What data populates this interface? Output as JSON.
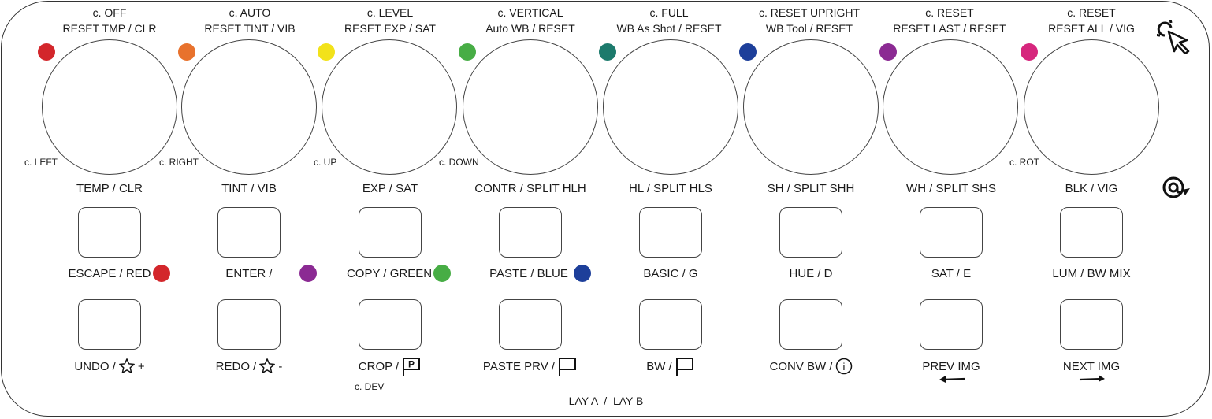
{
  "knobs": [
    {
      "line1": "c. OFF",
      "line2": "RESET TMP / CLR",
      "dot": "#d3262b",
      "corner": "c. LEFT"
    },
    {
      "line1": "c. AUTO",
      "line2": "RESET  TINT / VIB",
      "dot": "#e8722d",
      "corner": "c. RIGHT"
    },
    {
      "line1": "c. LEVEL",
      "line2": "RESET EXP / SAT",
      "dot": "#f2e21a",
      "corner": "c. UP"
    },
    {
      "line1": "c. VERTICAL",
      "line2": "Auto WB / RESET",
      "dot": "#47ad45",
      "corner": "c. DOWN"
    },
    {
      "line1": "c. FULL",
      "line2": "WB As Shot / RESET",
      "dot": "#1c7a6c",
      "corner": ""
    },
    {
      "line1": "c. RESET UPRIGHT",
      "line2": "WB Tool / RESET",
      "dot": "#1d3f9a",
      "corner": ""
    },
    {
      "line1": "c. RESET",
      "line2": "RESET LAST / RESET",
      "dot": "#8b2a93",
      "corner": ""
    },
    {
      "line1": "c. RESET",
      "line2": "RESET ALL / VIG",
      "dot": "#d6267d",
      "corner": "c. ROT"
    }
  ],
  "row1_labels": [
    "TEMP / CLR",
    "TINT / VIB",
    "EXP / SAT",
    "CONTR  / SPLIT HLH",
    "HL / SPLIT HLS",
    "SH / SPLIT SHH",
    "WH / SPLIT SHS",
    "BLK / VIG"
  ],
  "row2_labels": [
    "ESCAPE / RED",
    "ENTER /",
    "COPY / GREEN",
    "PASTE / BLUE",
    "BASIC / G",
    "HUE / D",
    "SAT / E",
    "LUM / BW MIX"
  ],
  "row2_dots": {
    "escape": "#d3262b",
    "enter": "#8b2a93",
    "copy": "#47ad45",
    "paste": "#1d3f9a"
  },
  "row3_labels": [
    "UNDO /",
    "REDO /",
    "CROP /",
    "PASTE PRV /",
    "BW /",
    "CONV BW /",
    "PREV IMG",
    "NEXT IMG"
  ],
  "row3_suffix": {
    "undo": "+",
    "redo": "-",
    "crop_flag": "P",
    "conv_info": "i"
  },
  "crop_sub": "c. DEV",
  "footer": "LAY A  /  LAY B",
  "icons": [
    "touch-click-icon",
    "rotate-at-icon",
    "star-icon",
    "flag-icon",
    "info-icon",
    "left-arrow-icon",
    "right-arrow-icon"
  ]
}
